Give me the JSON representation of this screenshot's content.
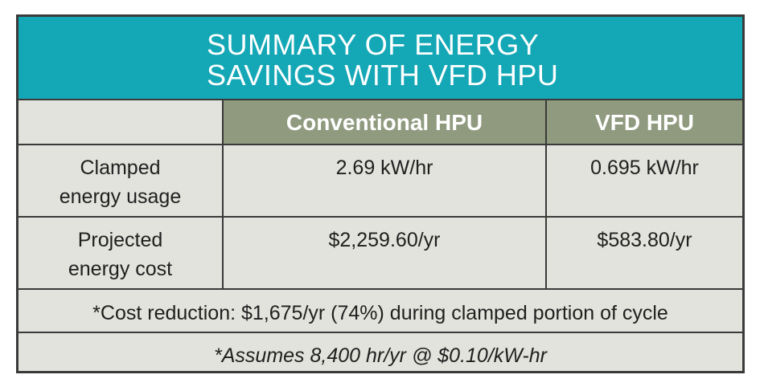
{
  "title": {
    "line1": "SUMMARY OF ENERGY",
    "line2": "SAVINGS WITH VFD HPU"
  },
  "table": {
    "columns": [
      "",
      "Conventional HPU",
      "VFD HPU"
    ],
    "rows": [
      {
        "label_line1": "Clamped",
        "label_line2": "energy usage",
        "conventional": "2.69 kW/hr",
        "vfd": "0.695 kW/hr"
      },
      {
        "label_line1": "Projected",
        "label_line2": "energy cost",
        "conventional": "$2,259.60/yr",
        "vfd": "$583.80/yr"
      }
    ],
    "summary": "*Cost reduction: $1,675/yr (74%) during clamped portion of cycle",
    "footnote": "*Assumes 8,400 hr/yr @ $0.10/kW-hr"
  },
  "colors": {
    "title_band": "#14a7b6",
    "header_cells": "#8f9a7f",
    "table_background": "#e2e3dc",
    "border": "#3a3a3a"
  }
}
